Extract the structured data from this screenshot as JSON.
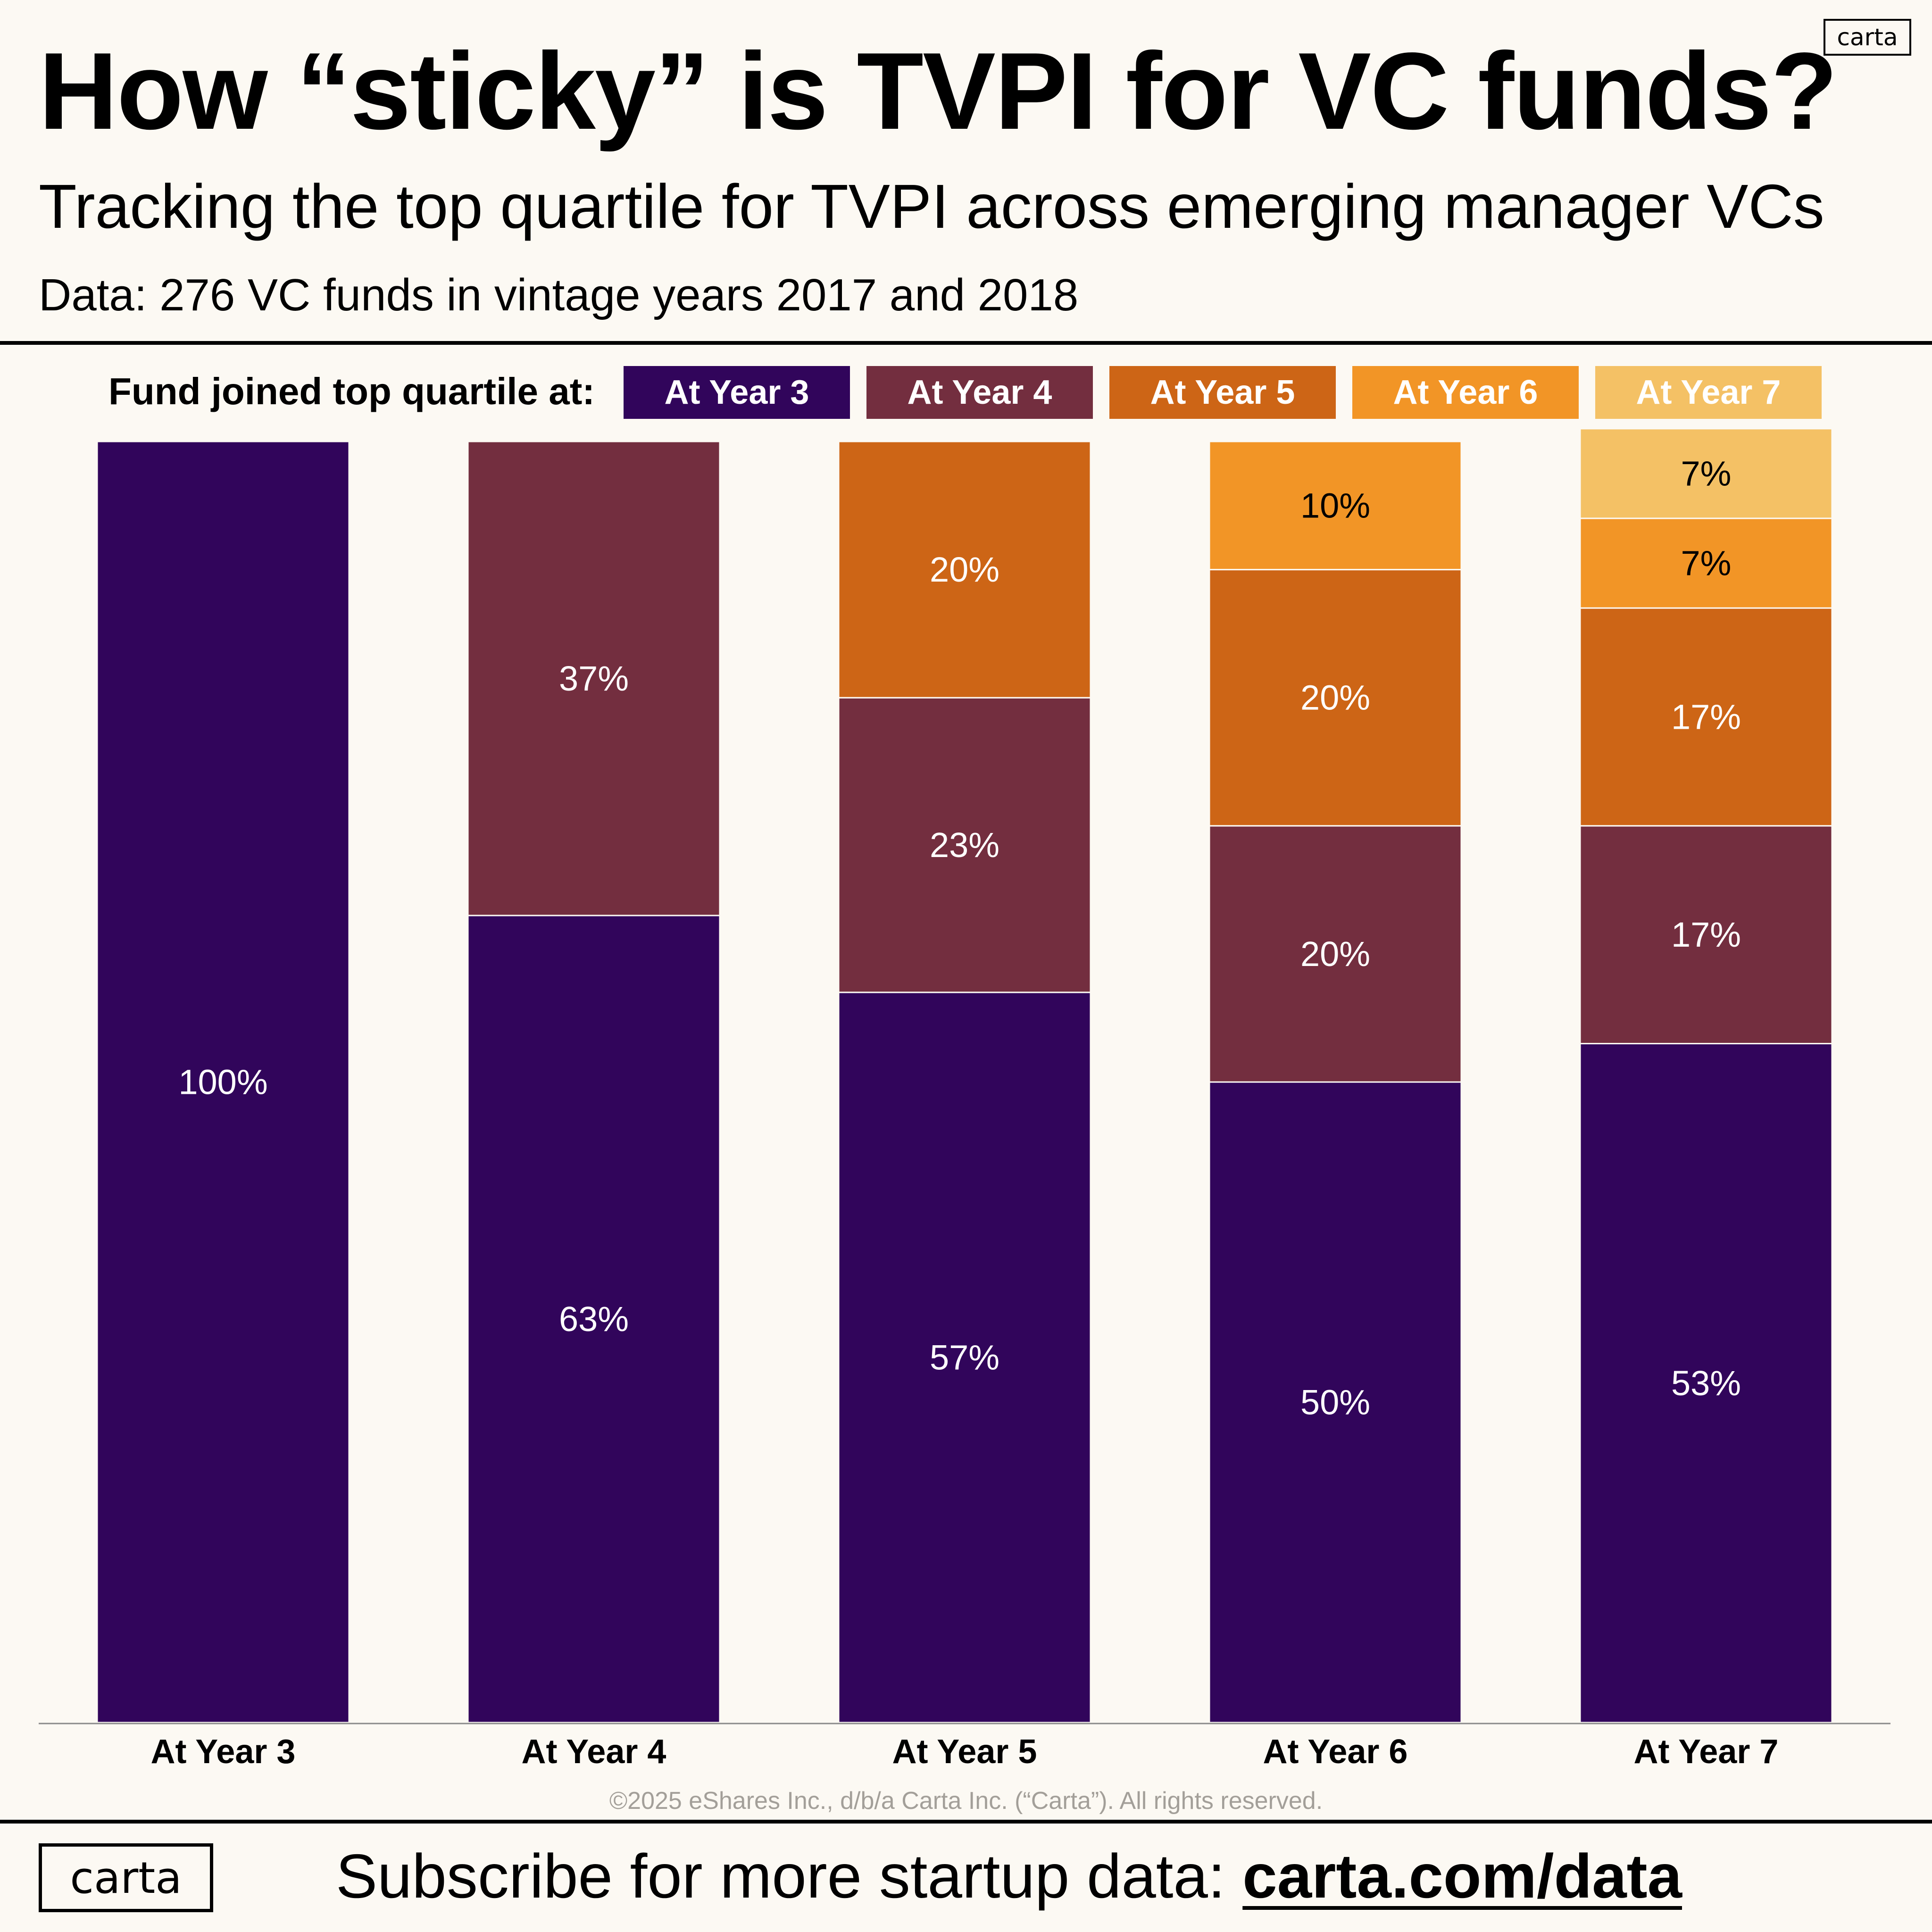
{
  "header": {
    "title": "How “sticky” is TVPI for VC funds?",
    "subtitle": "Tracking the top quartile for TVPI across emerging manager VCs",
    "data_note": "Data: 276 VC funds in vintage years 2017 and 2018",
    "brand": "carta"
  },
  "legend": {
    "label": "Fund joined top quartile at:",
    "items": [
      {
        "label": "At Year 3",
        "color": "#31055b",
        "text_color": "#ffffff"
      },
      {
        "label": "At Year 4",
        "color": "#732e3f",
        "text_color": "#ffffff"
      },
      {
        "label": "At Year 5",
        "color": "#cd6516",
        "text_color": "#ffffff"
      },
      {
        "label": "At Year 6",
        "color": "#f29526",
        "text_color": "#ffffff"
      },
      {
        "label": "At Year 7",
        "color": "#f4c165",
        "text_color": "#ffffff"
      }
    ]
  },
  "chart_data": {
    "type": "bar",
    "stacked": true,
    "categories": [
      "At Year 3",
      "At Year 4",
      "At Year 5",
      "At Year 6",
      "At Year 7"
    ],
    "series": [
      {
        "name": "At Year 3",
        "color": "#31055b",
        "label_color": "#ffffff",
        "values": [
          100,
          63,
          57,
          50,
          53
        ],
        "labels": [
          "100%",
          "63%",
          "57%",
          "50%",
          "53%"
        ]
      },
      {
        "name": "At Year 4",
        "color": "#732e3f",
        "label_color": "#ffffff",
        "values": [
          0,
          37,
          23,
          20,
          17
        ],
        "labels": [
          "",
          "37%",
          "23%",
          "20%",
          "17%"
        ]
      },
      {
        "name": "At Year 5",
        "color": "#cd6516",
        "label_color": "#ffffff",
        "values": [
          0,
          0,
          20,
          20,
          17
        ],
        "labels": [
          "",
          "",
          "20%",
          "20%",
          "17%"
        ]
      },
      {
        "name": "At Year 6",
        "color": "#f29526",
        "label_color": "#000000",
        "values": [
          0,
          0,
          0,
          10,
          7
        ],
        "labels": [
          "",
          "",
          "",
          "10%",
          "7%"
        ]
      },
      {
        "name": "At Year 7",
        "color": "#f4c165",
        "label_color": "#000000",
        "values": [
          0,
          0,
          0,
          0,
          7
        ],
        "labels": [
          "",
          "",
          "",
          "",
          "7%"
        ]
      }
    ],
    "ylim": [
      0,
      100
    ],
    "grid": false,
    "legend_position": "top"
  },
  "footer": {
    "copyright": "©2025 eShares Inc., d/b/a Carta Inc. (“Carta”). All rights reserved.",
    "brand": "carta",
    "cta_text": "Subscribe for more startup data: ",
    "cta_link": "carta.com/data"
  }
}
